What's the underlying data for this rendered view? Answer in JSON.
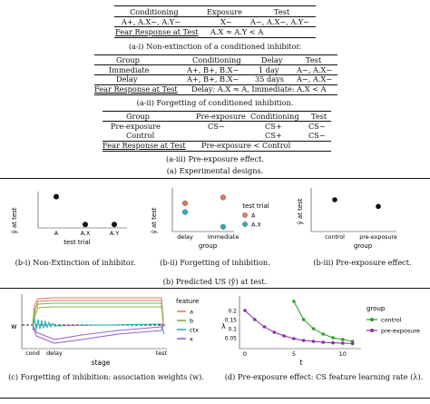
{
  "tables": {
    "t1": {
      "headers": [
        "Conditioning",
        "Exposure",
        "Test"
      ],
      "row1": [
        "A+, A.X−, A.Y−",
        "X−",
        "A−, A.X−, A.Y−"
      ],
      "fear_label": "Fear Response at Test",
      "fear_value": "A.X ≈ A.Y < A",
      "caption": "(a-i) Non-extinction of a conditioned inhibitor."
    },
    "t2": {
      "headers": [
        "Group",
        "Conditioning",
        "Delay",
        "Test"
      ],
      "rows": [
        [
          "Immediate",
          "A+, B+, B.X−",
          "1 day",
          "A−, A.X−"
        ],
        [
          "Delay",
          "A+, B+, B.X−",
          "35 days",
          "A−, A.X−"
        ]
      ],
      "fear_label": "Fear Response at Test",
      "fear_value": "Delay: A.X ≈ A, Immediate: A.X < A",
      "caption": "(a-ii) Forgetting of conditioned inhibition."
    },
    "t3": {
      "headers": [
        "Group",
        "Pre-exposure",
        "Conditioning",
        "Test"
      ],
      "rows": [
        [
          "Pre-exposure",
          "CS−",
          "CS+",
          "CS−"
        ],
        [
          "Control",
          "",
          "CS+",
          "CS−"
        ]
      ],
      "fear_label": "Fear Response at Test",
      "fear_value": "Pre-exposure < Control",
      "caption": "(a-iii) Pre-exposure effect."
    },
    "section_caption": "(a) Experimental designs."
  },
  "predicted": {
    "ylabel": "ŷ at test",
    "p1": {
      "xlabel": "test trial",
      "categories": [
        "A",
        "A.X",
        "A.Y"
      ],
      "caption": "(b-i) Non-Extinction of inhibitor."
    },
    "p2": {
      "xlabel": "group",
      "categories": [
        "delay",
        "immediate"
      ],
      "legend_title": "test trial",
      "legend_items": [
        "A",
        "A.X"
      ],
      "caption": "(b-ii) Forgetting of inhibition."
    },
    "p3": {
      "xlabel": "group",
      "categories": [
        "control",
        "pre-exposure"
      ],
      "caption": "(b-iii) Pre-exposure effect."
    },
    "section_caption": "(b) Predicted US (ŷ) at test."
  },
  "weights": {
    "ylabel": "w",
    "xlabel": "stage",
    "xticks": [
      "cond",
      "delay",
      "test"
    ],
    "legend_title": "feature",
    "legend_items": [
      "a",
      "b",
      "ctx",
      "x"
    ],
    "caption": "(c) Forgetting of inhibition: association weights (w)."
  },
  "lr": {
    "ylabel": "λ",
    "xlabel": "t",
    "yticks": [
      "0.2",
      "0.15",
      "0.1",
      "0.05"
    ],
    "xticks": [
      "0",
      "5",
      "10"
    ],
    "legend_title": "group",
    "legend_items": [
      "control",
      "pre-exposure"
    ],
    "caption": "(d) Pre-exposure effect: CS feature learning rate (λ)."
  },
  "colors": {
    "a": "#e07b67",
    "b": "#7fb843",
    "ctx": "#22b5b8",
    "x": "#9a64c8",
    "control": "#27a022",
    "preexposure": "#8a2ba8"
  },
  "chart_data": [
    {
      "type": "scatter",
      "title": "(b-i) Non-Extinction of inhibitor.",
      "xlabel": "test trial",
      "ylabel": "ŷ at test",
      "categories": [
        "A",
        "A.X",
        "A.Y"
      ],
      "values": [
        0.9,
        0.05,
        0.05
      ],
      "ylim": [
        0,
        1
      ]
    },
    {
      "type": "scatter",
      "title": "(b-ii) Forgetting of inhibition.",
      "xlabel": "group",
      "ylabel": "ŷ at test",
      "categories": [
        "delay",
        "immediate"
      ],
      "series": [
        {
          "name": "A",
          "values": [
            0.45,
            0.55
          ]
        },
        {
          "name": "A.X",
          "values": [
            0.3,
            0.05
          ]
        }
      ],
      "ylim": [
        0,
        0.65
      ]
    },
    {
      "type": "scatter",
      "title": "(b-iii) Pre-exposure effect.",
      "xlabel": "group",
      "ylabel": "ŷ at test",
      "categories": [
        "control",
        "pre-exposure"
      ],
      "values": [
        0.9,
        0.7
      ],
      "ylim": [
        0,
        1.2
      ]
    },
    {
      "type": "line",
      "title": "(d) Pre-exposure effect: CS feature learning rate (λ).",
      "xlabel": "t",
      "ylabel": "λ",
      "series": [
        {
          "name": "control",
          "x": [
            5,
            6,
            7,
            8,
            9,
            10,
            11
          ],
          "values": [
            0.25,
            0.15,
            0.1,
            0.07,
            0.05,
            0.04,
            0.03
          ]
        },
        {
          "name": "pre-exposure",
          "x": [
            0,
            1,
            2,
            3,
            4,
            5,
            6,
            7,
            8,
            9,
            10,
            11
          ],
          "values": [
            0.2,
            0.15,
            0.11,
            0.08,
            0.06,
            0.045,
            0.035,
            0.03,
            0.025,
            0.022,
            0.02,
            0.018
          ]
        }
      ],
      "ylim": [
        0,
        0.27
      ]
    }
  ]
}
